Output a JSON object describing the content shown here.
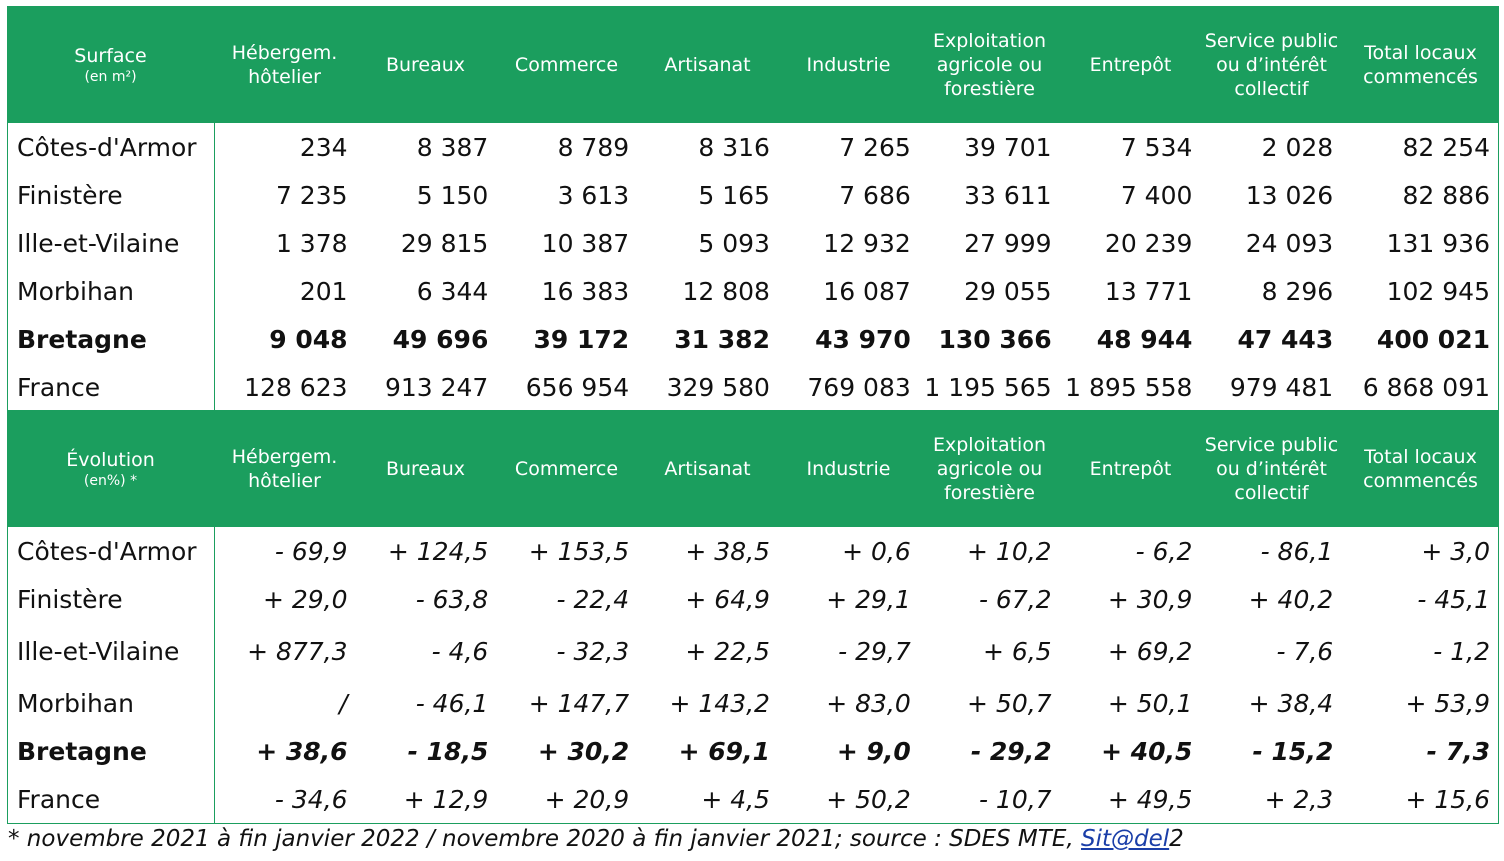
{
  "table1": {
    "header": {
      "title": "Surface",
      "unit": "(en m²)",
      "columns": [
        "Hébergem. hôtelier",
        "Bureaux",
        "Commerce",
        "Artisanat",
        "Industrie",
        "Exploitation agricole ou forestière",
        "Entrepôt",
        "Service public ou d’intérêt collectif",
        "Total locaux commencés"
      ]
    },
    "rows": [
      {
        "label": "Côtes-d'Armor",
        "values": [
          "234",
          "8 387",
          "8 789",
          "8 316",
          "7 265",
          "39 701",
          "7 534",
          "2 028",
          "82 254"
        ]
      },
      {
        "label": "Finistère",
        "values": [
          "7 235",
          "5 150",
          "3 613",
          "5 165",
          "7 686",
          "33 611",
          "7 400",
          "13 026",
          "82 886"
        ]
      },
      {
        "label": "Ille-et-Vilaine",
        "values": [
          "1 378",
          "29 815",
          "10 387",
          "5 093",
          "12 932",
          "27 999",
          "20 239",
          "24 093",
          "131 936"
        ]
      },
      {
        "label": "Morbihan",
        "values": [
          "201",
          "6 344",
          "16 383",
          "12 808",
          "16 087",
          "29 055",
          "13 771",
          "8 296",
          "102 945"
        ]
      },
      {
        "label": "Bretagne",
        "values": [
          "9 048",
          "49 696",
          "39 172",
          "31 382",
          "43 970",
          "130 366",
          "48 944",
          "47 443",
          "400 021"
        ]
      },
      {
        "label": "France",
        "values": [
          "128 623",
          "913 247",
          "656 954",
          "329 580",
          "769 083",
          "1 195 565",
          "1 895 558",
          "979 481",
          "6 868 091"
        ]
      }
    ]
  },
  "table2": {
    "header": {
      "title": "Évolution",
      "unit": "(en%) *",
      "columns": [
        "Hébergem. hôtelier",
        "Bureaux",
        "Commerce",
        "Artisanat",
        "Industrie",
        "Exploitation agricole ou forestière",
        "Entrepôt",
        "Service public ou d’intérêt collectif",
        "Total locaux commencés"
      ]
    },
    "rows": [
      {
        "label": "Côtes-d'Armor",
        "values": [
          "- 69,9",
          "+ 124,5",
          "+ 153,5",
          "+ 38,5",
          "+ 0,6",
          "+ 10,2",
          "- 6,2",
          "- 86,1",
          "+ 3,0"
        ]
      },
      {
        "label": "Finistère",
        "values": [
          "+ 29,0",
          "- 63,8",
          "- 22,4",
          "+ 64,9",
          "+ 29,1",
          "- 67,2",
          "+ 30,9",
          "+ 40,2",
          "- 45,1"
        ]
      },
      {
        "label": "Ille-et-Vilaine",
        "values": [
          "+ 877,3",
          "- 4,6",
          "- 32,3",
          "+ 22,5",
          "- 29,7",
          "+ 6,5",
          "+ 69,2",
          "- 7,6",
          "- 1,2"
        ]
      },
      {
        "label": "Morbihan",
        "values": [
          "/",
          "- 46,1",
          "+ 147,7",
          "+ 143,2",
          "+ 83,0",
          "+ 50,7",
          "+ 50,1",
          "+ 38,4",
          "+ 53,9"
        ]
      },
      {
        "label": "Bretagne",
        "values": [
          "+ 38,6",
          "- 18,5",
          "+ 30,2",
          "+ 69,1",
          "+ 9,0",
          "- 29,2",
          "+ 40,5",
          "- 15,2",
          "- 7,3"
        ]
      },
      {
        "label": "France",
        "values": [
          "- 34,6",
          "+ 12,9",
          "+ 20,9",
          "+ 4,5",
          "+ 50,2",
          "- 10,7",
          "+ 49,5",
          "+ 2,3",
          "+ 15,6"
        ]
      }
    ]
  },
  "footnote": {
    "text": "* novembre 2021 à fin janvier 2022 /  novembre 2020 à fin janvier 2021; source : SDES MTE, ",
    "link": "Sit@del",
    "suffix": "2"
  },
  "colors": {
    "header_bg": "#1b9e5e",
    "link": "#1a3ea8"
  }
}
